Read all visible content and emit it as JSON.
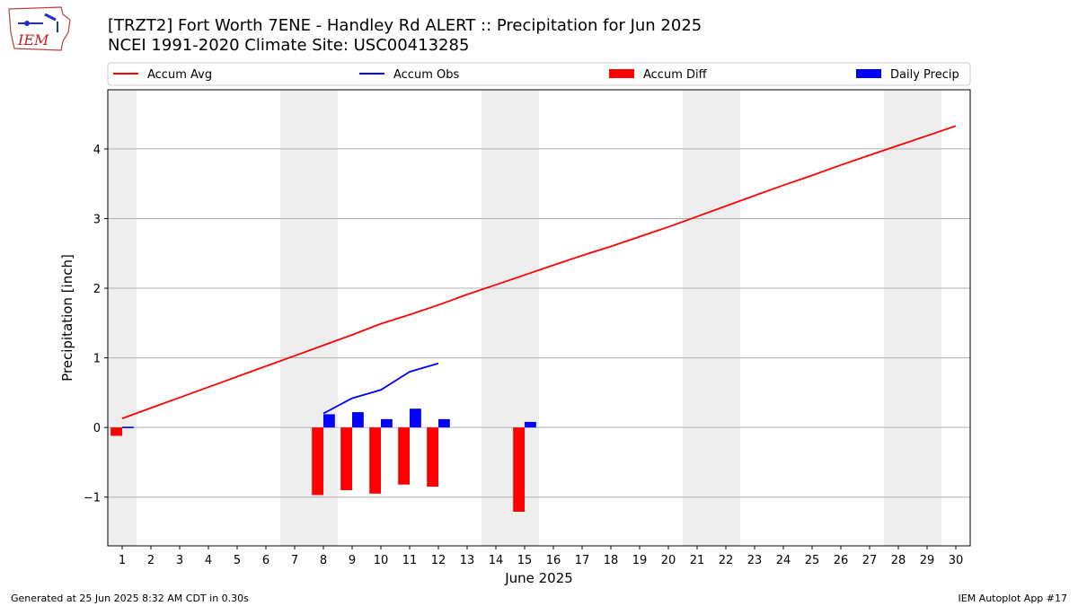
{
  "header": {
    "title_line1": "[TRZT2] Fort Worth 7ENE - Handley Rd ALERT :: Precipitation for Jun 2025",
    "title_line2": "NCEI 1991-2020 Climate Site: USC00413285",
    "logo_text": "IEM"
  },
  "footer": {
    "generated": "Generated at 25 Jun 2025 8:32 AM CDT in 0.30s",
    "app": "IEM Autoplot App #17"
  },
  "colors": {
    "avg": "#ff0000",
    "obs": "#0000ff",
    "diff": "#ff0000",
    "daily": "#0000ff",
    "weekend_band": "#eeeeee",
    "grid": "#b0b0b0"
  },
  "chart_data": {
    "type": "bar",
    "title": "[TRZT2] Fort Worth 7ENE - Handley Rd ALERT :: Precipitation for Jun 2025",
    "xlabel": "June 2025",
    "ylabel": "Precipitation [inch]",
    "xlim": [
      0.5,
      30.5
    ],
    "ylim": [
      -1.7,
      4.85
    ],
    "yticks": [
      -1,
      0,
      1,
      2,
      3,
      4
    ],
    "ytick_labels": [
      "−1",
      "0",
      "1",
      "2",
      "3",
      "4"
    ],
    "x": [
      1,
      2,
      3,
      4,
      5,
      6,
      7,
      8,
      9,
      10,
      11,
      12,
      13,
      14,
      15,
      16,
      17,
      18,
      19,
      20,
      21,
      22,
      23,
      24,
      25,
      26,
      27,
      28,
      29,
      30
    ],
    "grid": "y",
    "legend_position": "top",
    "weekend_bands": [
      [
        0.5,
        1.5
      ],
      [
        6.5,
        8.5
      ],
      [
        13.5,
        15.5
      ],
      [
        20.5,
        22.5
      ],
      [
        27.5,
        29.5
      ]
    ],
    "series": [
      {
        "name": "Accum Avg",
        "type": "line",
        "x": [
          1,
          2,
          3,
          4,
          5,
          6,
          7,
          8,
          9,
          10,
          11,
          12,
          13,
          14,
          15,
          16,
          17,
          18,
          19,
          20,
          21,
          22,
          23,
          24,
          25,
          26,
          27,
          28,
          29,
          30
        ],
        "values": [
          0.13,
          0.28,
          0.43,
          0.58,
          0.73,
          0.88,
          1.03,
          1.18,
          1.33,
          1.49,
          1.62,
          1.76,
          1.91,
          2.05,
          2.19,
          2.33,
          2.47,
          2.6,
          2.74,
          2.88,
          3.03,
          3.18,
          3.33,
          3.48,
          3.62,
          3.77,
          3.91,
          4.05,
          4.19,
          4.33
        ]
      },
      {
        "name": "Accum Obs",
        "type": "line",
        "x": [
          1,
          8,
          9,
          10,
          11,
          12
        ],
        "values": [
          0.0,
          0.2,
          0.42,
          0.54,
          0.8,
          0.92
        ]
      },
      {
        "name": "Accum Diff",
        "type": "bar",
        "x": [
          1,
          8,
          9,
          10,
          11,
          12,
          15
        ],
        "values": [
          -0.12,
          -0.97,
          -0.9,
          -0.95,
          -0.82,
          -0.85,
          -1.21
        ]
      },
      {
        "name": "Daily Precip",
        "type": "bar",
        "x": [
          1,
          8,
          9,
          10,
          11,
          12,
          15
        ],
        "values": [
          0.01,
          0.19,
          0.22,
          0.12,
          0.27,
          0.12,
          0.08
        ]
      }
    ]
  }
}
